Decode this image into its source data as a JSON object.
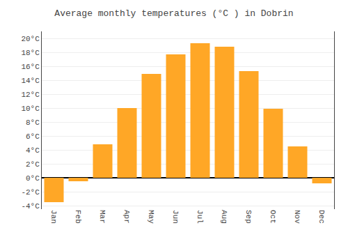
{
  "chart_data": {
    "type": "bar",
    "title": "Average monthly temperatures (°C ) in Dobrin",
    "categories": [
      "Jan",
      "Feb",
      "Mar",
      "Apr",
      "May",
      "Jun",
      "Jul",
      "Aug",
      "Sep",
      "Oct",
      "Nov",
      "Dec"
    ],
    "values": [
      -3.5,
      -0.5,
      4.8,
      10.0,
      14.9,
      17.7,
      19.3,
      18.8,
      15.3,
      9.9,
      4.5,
      -0.8
    ],
    "color": "#FFA726",
    "ylim": [
      -4.5,
      21
    ],
    "yticks": [
      {
        "value": -4,
        "label": "-4°C"
      },
      {
        "value": -2,
        "label": "-2°C"
      },
      {
        "value": 0,
        "label": "0°C"
      },
      {
        "value": 2,
        "label": "2°C"
      },
      {
        "value": 4,
        "label": "4°C"
      },
      {
        "value": 6,
        "label": "6°C"
      },
      {
        "value": 8,
        "label": "8°C"
      },
      {
        "value": 10,
        "label": "10°C"
      },
      {
        "value": 12,
        "label": "12°C"
      },
      {
        "value": 14,
        "label": "14°C"
      },
      {
        "value": 16,
        "label": "16°C"
      },
      {
        "value": 18,
        "label": "18°C"
      },
      {
        "value": 20,
        "label": "20°C"
      }
    ],
    "grid": true
  }
}
